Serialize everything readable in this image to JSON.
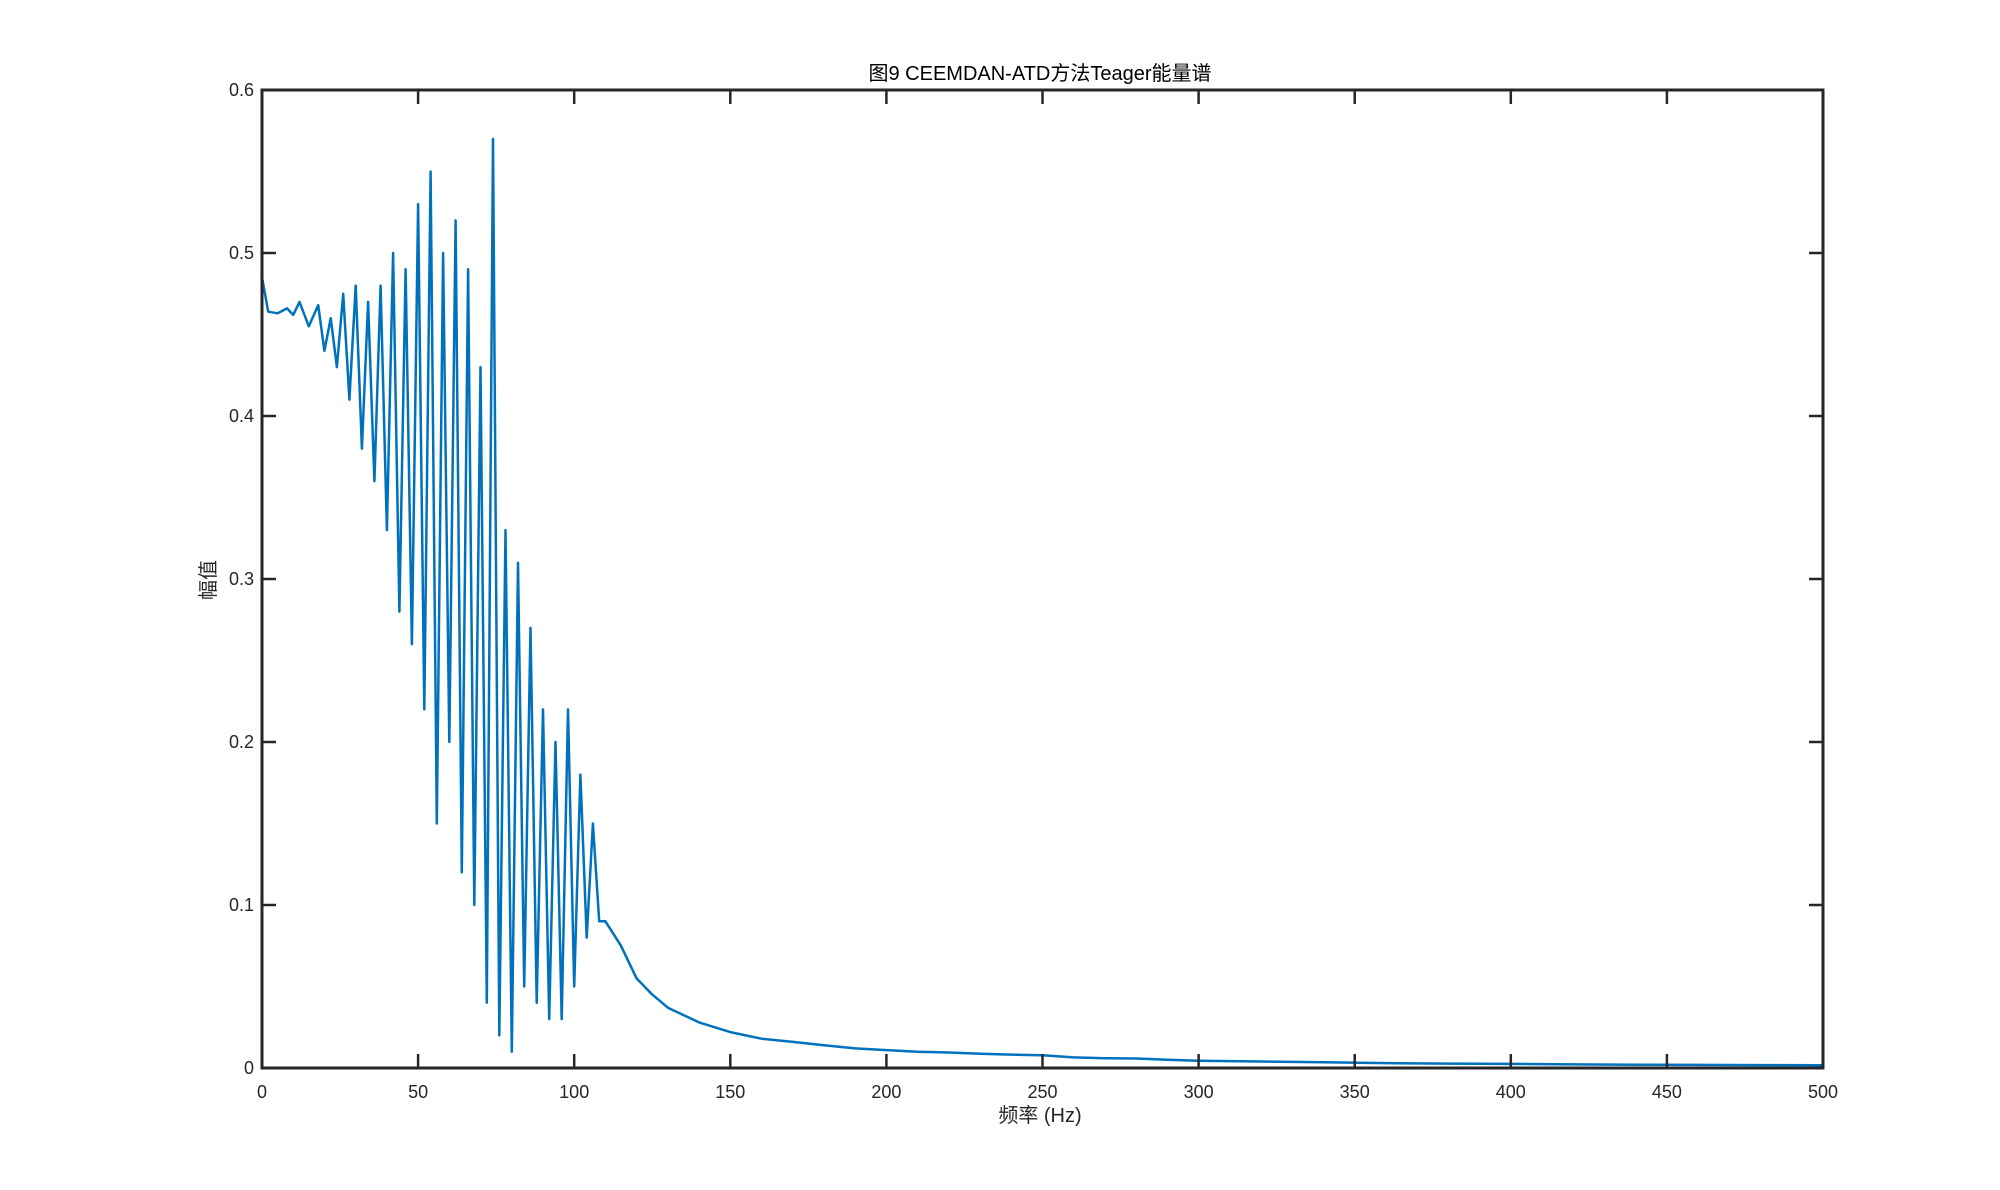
{
  "chart_data": {
    "type": "line",
    "title": "图9 CEEMDAN-ATD方法Teager能量谱",
    "xlabel": "频率 (Hz)",
    "ylabel": "幅值",
    "xlim": [
      0,
      500
    ],
    "ylim": [
      0,
      0.6
    ],
    "grid": false,
    "box": true,
    "xticks": [
      0,
      50,
      100,
      150,
      200,
      250,
      300,
      350,
      400,
      450,
      500
    ],
    "yticks": [
      0,
      0.1,
      0.2,
      0.3,
      0.4,
      0.5,
      0.6
    ],
    "xtick_labels": [
      "0",
      "50",
      "100",
      "150",
      "200",
      "250",
      "300",
      "350",
      "400",
      "450",
      "500"
    ],
    "ytick_labels": [
      "0",
      "0.1",
      "0.2",
      "0.3",
      "0.4",
      "0.5",
      "0.6"
    ],
    "series": [
      {
        "color": "#0072bd",
        "x": [
          0,
          2,
          5,
          8,
          10,
          12,
          15,
          18,
          20,
          22,
          24,
          26,
          28,
          30,
          32,
          34,
          36,
          38,
          40,
          42,
          44,
          46,
          48,
          50,
          52,
          54,
          56,
          58,
          60,
          62,
          64,
          66,
          68,
          70,
          72,
          74,
          76,
          78,
          80,
          82,
          84,
          86,
          88,
          90,
          92,
          94,
          96,
          98,
          100,
          102,
          104,
          106,
          108,
          110,
          115,
          120,
          125,
          130,
          140,
          150,
          160,
          170,
          180,
          190,
          200,
          210,
          220,
          230,
          240,
          250,
          260,
          270,
          280,
          290,
          300,
          320,
          340,
          360,
          380,
          400,
          420,
          440,
          460,
          480,
          500
        ],
        "y": [
          0.485,
          0.464,
          0.463,
          0.466,
          0.462,
          0.47,
          0.455,
          0.468,
          0.44,
          0.46,
          0.43,
          0.475,
          0.41,
          0.48,
          0.38,
          0.47,
          0.36,
          0.48,
          0.33,
          0.5,
          0.28,
          0.49,
          0.26,
          0.53,
          0.22,
          0.55,
          0.15,
          0.5,
          0.2,
          0.52,
          0.12,
          0.49,
          0.1,
          0.43,
          0.04,
          0.57,
          0.02,
          0.33,
          0.01,
          0.31,
          0.05,
          0.27,
          0.04,
          0.22,
          0.03,
          0.2,
          0.03,
          0.22,
          0.05,
          0.18,
          0.08,
          0.15,
          0.09,
          0.09,
          0.075,
          0.055,
          0.045,
          0.037,
          0.028,
          0.022,
          0.018,
          0.016,
          0.014,
          0.012,
          0.011,
          0.01,
          0.0095,
          0.0088,
          0.0082,
          0.0078,
          0.0065,
          0.006,
          0.0058,
          0.005,
          0.0045,
          0.004,
          0.0035,
          0.003,
          0.0027,
          0.0025,
          0.0022,
          0.002,
          0.0019,
          0.0018,
          0.0017
        ]
      }
    ]
  }
}
